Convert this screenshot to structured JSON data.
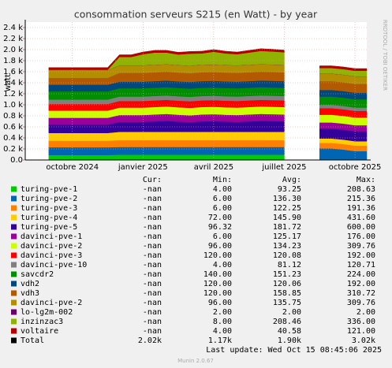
{
  "chart_data": {
    "type": "stacked_area",
    "title": "consommation serveurs S215 (en Watt) - by year",
    "y_label": "watt",
    "side_label": "RRDTOOL / TOBI OETIKER",
    "categories": [
      null,
      null,
      null,
      null,
      "octobre 2024",
      null,
      null,
      null,
      null,
      null,
      "janvier 2025",
      null,
      null,
      null,
      null,
      null,
      "avril 2025",
      null,
      null,
      null,
      null,
      null,
      "juillet 2025",
      null,
      null,
      null,
      null,
      null,
      "octobre 2025",
      null
    ],
    "ylim": [
      0,
      2500
    ],
    "yticks": [
      {
        "value": 0,
        "label": "0.0"
      },
      {
        "value": 200,
        "label": "0.2 k"
      },
      {
        "value": 400,
        "label": "0.4 k"
      },
      {
        "value": 600,
        "label": "0.6 k"
      },
      {
        "value": 800,
        "label": "0.8 k"
      },
      {
        "value": 1000,
        "label": "1.0 k"
      },
      {
        "value": 1200,
        "label": "1.2 k"
      },
      {
        "value": 1400,
        "label": "1.4 k"
      },
      {
        "value": 1600,
        "label": "1.6 k"
      },
      {
        "value": 1800,
        "label": "1.8 k"
      },
      {
        "value": 2000,
        "label": "2.0 k"
      },
      {
        "value": 2200,
        "label": "2.2 k"
      },
      {
        "value": 2400,
        "label": "2.4 k"
      }
    ],
    "grid": true,
    "legend_columns": [
      "Cur:",
      "Min:",
      "Avg:",
      "Max:"
    ],
    "series": [
      {
        "name": "turing-pve-1",
        "color": "#00CC00",
        "cur": "-nan",
        "min": "4.00",
        "avg": "93.25",
        "max": "208.63",
        "values": [
          null,
          null,
          90,
          90,
          90,
          90,
          90,
          90,
          95,
          95,
          95,
          95,
          95,
          95,
          95,
          95,
          95,
          95,
          95,
          95,
          95,
          95,
          95,
          null,
          null,
          10,
          10,
          10,
          10,
          10
        ]
      },
      {
        "name": "turing-pve-2",
        "color": "#0066B3",
        "cur": "-nan",
        "min": "6.00",
        "avg": "136.30",
        "max": "215.36",
        "values": [
          null,
          null,
          140,
          140,
          140,
          140,
          140,
          140,
          140,
          140,
          140,
          140,
          140,
          140,
          140,
          140,
          140,
          140,
          140,
          140,
          140,
          140,
          140,
          null,
          null,
          200,
          200,
          180,
          150,
          150
        ]
      },
      {
        "name": "turing-pve-3",
        "color": "#FF8000",
        "cur": "-nan",
        "min": "6.00",
        "avg": "122.25",
        "max": "191.36",
        "values": [
          null,
          null,
          120,
          120,
          120,
          120,
          120,
          120,
          125,
          125,
          125,
          125,
          125,
          125,
          125,
          125,
          125,
          125,
          125,
          125,
          125,
          125,
          125,
          null,
          null,
          100,
          100,
          100,
          100,
          100
        ]
      },
      {
        "name": "turing-pve-4",
        "color": "#FFCC00",
        "cur": "-nan",
        "min": "72.00",
        "avg": "145.90",
        "max": "431.60",
        "values": [
          null,
          null,
          140,
          140,
          140,
          140,
          140,
          140,
          150,
          150,
          150,
          150,
          150,
          150,
          150,
          150,
          150,
          150,
          150,
          150,
          150,
          150,
          150,
          null,
          null,
          80,
          80,
          80,
          80,
          80
        ]
      },
      {
        "name": "turing-pve-5",
        "color": "#330099",
        "cur": "-nan",
        "min": "96.32",
        "avg": "181.72",
        "max": "600.00",
        "values": [
          null,
          null,
          150,
          150,
          150,
          150,
          150,
          150,
          180,
          180,
          180,
          190,
          200,
          185,
          175,
          190,
          195,
          185,
          180,
          190,
          200,
          195,
          190,
          null,
          null,
          180,
          180,
          180,
          180,
          180
        ]
      },
      {
        "name": "davinci-pve-1",
        "color": "#990099",
        "cur": "-nan",
        "min": "6.00",
        "avg": "125.17",
        "max": "176.00",
        "values": [
          null,
          null,
          125,
          125,
          125,
          125,
          125,
          125,
          125,
          125,
          125,
          125,
          125,
          125,
          125,
          125,
          125,
          125,
          125,
          125,
          125,
          125,
          125,
          null,
          null,
          110,
          110,
          110,
          110,
          110
        ]
      },
      {
        "name": "davinci-pve-2",
        "color": "#CCFF00",
        "cur": "-nan",
        "min": "96.00",
        "avg": "134.23",
        "max": "309.76",
        "values": [
          null,
          null,
          130,
          130,
          130,
          130,
          130,
          130,
          135,
          135,
          135,
          135,
          135,
          135,
          135,
          135,
          135,
          135,
          135,
          135,
          135,
          135,
          135,
          null,
          null,
          140,
          140,
          140,
          140,
          140
        ]
      },
      {
        "name": "davinci-pve-3",
        "color": "#FF0000",
        "cur": "-nan",
        "min": "120.00",
        "avg": "120.08",
        "max": "192.00",
        "values": [
          null,
          null,
          120,
          120,
          120,
          120,
          120,
          120,
          120,
          120,
          120,
          120,
          120,
          120,
          120,
          120,
          120,
          120,
          120,
          120,
          120,
          120,
          120,
          null,
          null,
          120,
          120,
          120,
          120,
          120
        ]
      },
      {
        "name": "davinci-pve-10",
        "color": "#808080",
        "cur": "-nan",
        "min": "4.00",
        "avg": "81.12",
        "max": "120.71",
        "values": [
          null,
          null,
          80,
          80,
          80,
          80,
          80,
          80,
          80,
          80,
          80,
          80,
          80,
          80,
          80,
          80,
          80,
          80,
          80,
          80,
          80,
          80,
          80,
          null,
          null,
          60,
          60,
          60,
          60,
          60
        ]
      },
      {
        "name": "savcdr2",
        "color": "#008F00",
        "cur": "-nan",
        "min": "140.00",
        "avg": "151.23",
        "max": "224.00",
        "values": [
          null,
          null,
          150,
          150,
          150,
          150,
          150,
          150,
          150,
          150,
          150,
          150,
          150,
          150,
          150,
          150,
          150,
          150,
          150,
          150,
          150,
          150,
          150,
          null,
          null,
          150,
          150,
          150,
          150,
          150
        ]
      },
      {
        "name": "vdh2",
        "color": "#00487D",
        "cur": "-nan",
        "min": "120.00",
        "avg": "120.06",
        "max": "192.00",
        "values": [
          null,
          null,
          120,
          120,
          120,
          120,
          120,
          120,
          120,
          120,
          120,
          120,
          120,
          120,
          120,
          120,
          120,
          120,
          120,
          120,
          120,
          120,
          120,
          null,
          null,
          120,
          120,
          120,
          120,
          120
        ]
      },
      {
        "name": "vdh3",
        "color": "#B35A00",
        "cur": "-nan",
        "min": "120.00",
        "avg": "158.85",
        "max": "310.72",
        "values": [
          null,
          null,
          125,
          125,
          125,
          125,
          125,
          125,
          160,
          160,
          160,
          160,
          160,
          160,
          160,
          160,
          160,
          160,
          160,
          160,
          160,
          160,
          160,
          null,
          null,
          160,
          160,
          160,
          160,
          160
        ]
      },
      {
        "name": "davinci-pve-2",
        "color": "#B38F00",
        "cur": "-nan",
        "min": "96.00",
        "avg": "135.75",
        "max": "309.76",
        "values": [
          null,
          null,
          135,
          135,
          135,
          135,
          135,
          135,
          135,
          135,
          135,
          135,
          135,
          135,
          135,
          135,
          135,
          135,
          135,
          135,
          135,
          135,
          135,
          null,
          null,
          135,
          135,
          135,
          135,
          135
        ]
      },
      {
        "name": "lo-lg2m-002",
        "color": "#6B006B",
        "cur": "-nan",
        "min": "2.00",
        "avg": "2.00",
        "max": "2.00",
        "values": [
          null,
          null,
          2,
          2,
          2,
          2,
          2,
          2,
          2,
          2,
          2,
          2,
          2,
          2,
          2,
          2,
          2,
          2,
          2,
          2,
          2,
          2,
          2,
          null,
          null,
          2,
          2,
          2,
          2,
          2
        ]
      },
      {
        "name": "inzinzac3",
        "color": "#8FB300",
        "cur": "-nan",
        "min": "8.00",
        "avg": "208.46",
        "max": "336.00",
        "values": [
          null,
          null,
          8,
          8,
          8,
          8,
          8,
          8,
          150,
          150,
          200,
          220,
          210,
          190,
          215,
          205,
          230,
          210,
          200,
          220,
          240,
          235,
          225,
          null,
          null,
          100,
          100,
          100,
          100,
          100
        ]
      },
      {
        "name": "voltaire",
        "color": "#B30000",
        "cur": "-nan",
        "min": "4.00",
        "avg": "40.58",
        "max": "121.00",
        "values": [
          null,
          null,
          40,
          40,
          40,
          40,
          40,
          40,
          40,
          40,
          40,
          40,
          40,
          40,
          40,
          40,
          40,
          40,
          40,
          40,
          40,
          40,
          40,
          null,
          null,
          40,
          40,
          40,
          40,
          40
        ]
      }
    ],
    "total": {
      "name": "Total",
      "color": "#000000",
      "cur": "2.02k",
      "min": "1.17k",
      "avg": "1.90k",
      "max": "3.02k"
    },
    "last_update": "Last update: Wed Oct 15 08:45:06 2025",
    "footer": "Munin 2.0.67"
  }
}
